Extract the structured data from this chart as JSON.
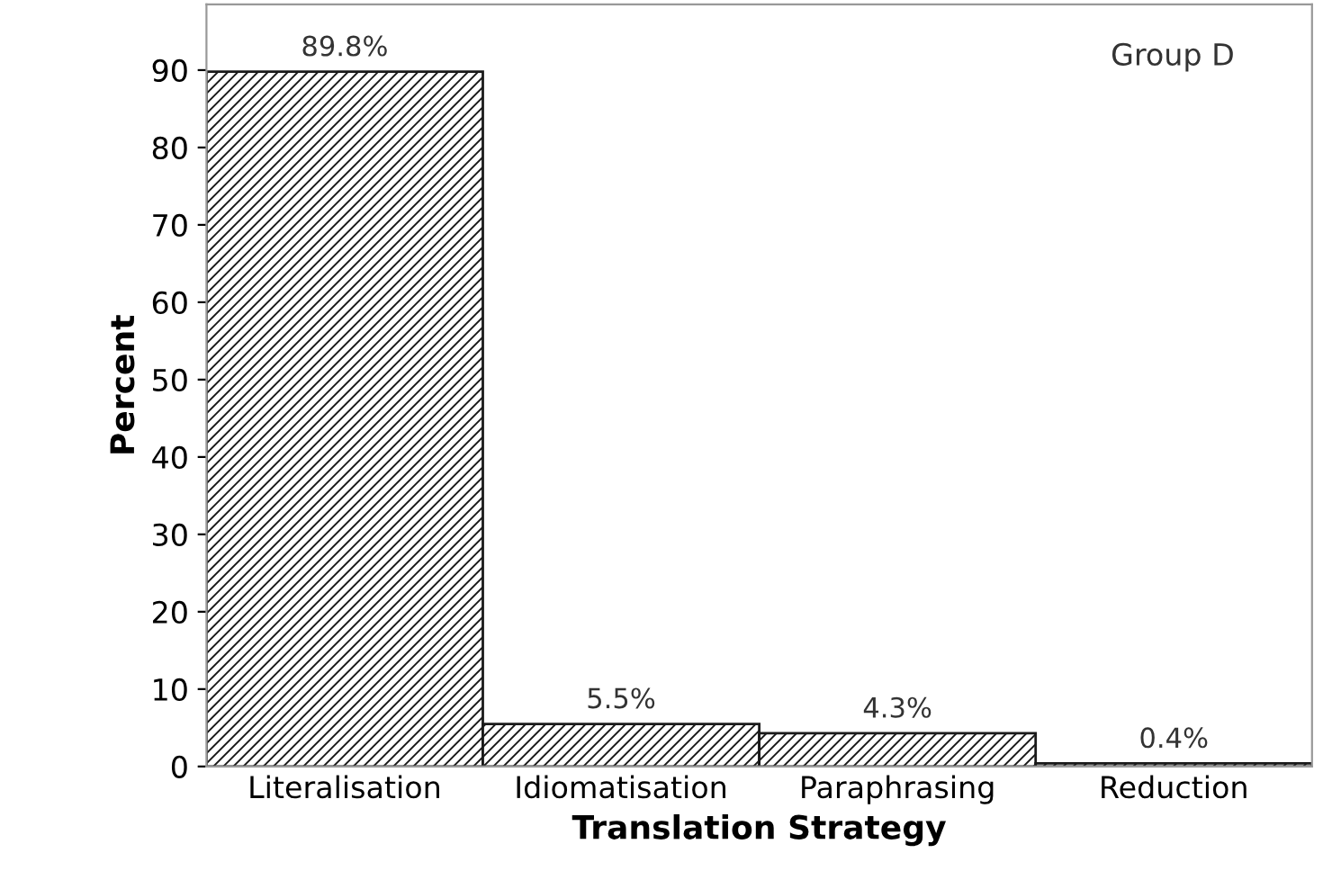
{
  "chart_data": {
    "type": "bar",
    "xlabel": "Translation Strategy",
    "ylabel": "Percent",
    "categories": [
      "Literalisation",
      "Idiomatisation",
      "Paraphrasing",
      "Reduction"
    ],
    "values": [
      89.8,
      5.5,
      4.3,
      0.4
    ],
    "value_labels": [
      "89.8%",
      "5.5%",
      "4.3%",
      "0.4%"
    ],
    "color": "#1a1a1a",
    "ylim": [
      0,
      98.5
    ],
    "yticks": [
      0,
      10,
      20,
      30,
      40,
      50,
      60,
      70,
      80,
      90
    ],
    "annotations": [
      "Group D"
    ],
    "grid": false,
    "legend": false
  }
}
